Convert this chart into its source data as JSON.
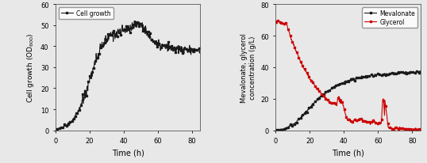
{
  "left_xlabel": "Time (h)",
  "left_legend": "Cell growth",
  "left_xlim": [
    0,
    85
  ],
  "left_ylim": [
    0,
    60
  ],
  "left_yticks": [
    0,
    10,
    20,
    30,
    40,
    50,
    60
  ],
  "left_xticks": [
    0,
    20,
    40,
    60,
    80
  ],
  "right_xlabel": "Time (h)",
  "right_legend_mevalonate": "Mevalonate",
  "right_legend_glycerol": "Glycerol",
  "right_xlim": [
    0,
    85
  ],
  "right_ylim": [
    0,
    80
  ],
  "right_yticks": [
    0,
    20,
    40,
    60,
    80
  ],
  "right_xticks": [
    0,
    20,
    40,
    60,
    80
  ],
  "bg_color": "#e8e8e8",
  "line_color_black": "#1a1a1a",
  "line_color_red": "#cc0000",
  "marker": "s",
  "markersize": 2,
  "linewidth": 0.8
}
